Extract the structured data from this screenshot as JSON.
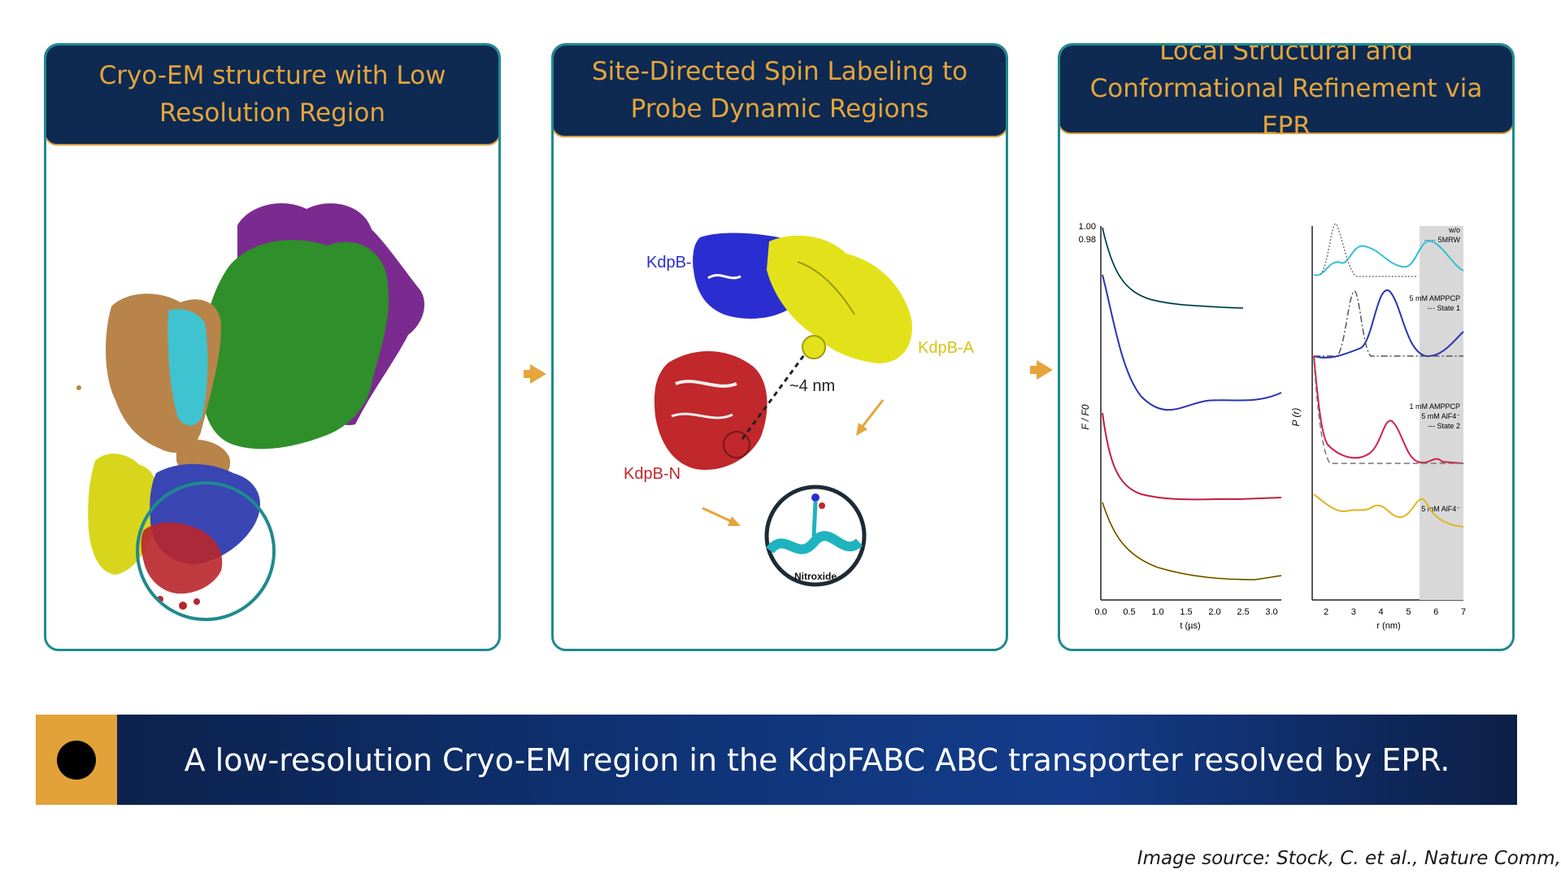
{
  "panels": [
    {
      "title": "Cryo-EM structure with Low Resolution Region"
    },
    {
      "title": "Site-Directed Spin Labeling to Probe Dynamic Regions",
      "labels": {
        "kdpb_p": "KdpB-P",
        "kdpb_a": "KdpB-A",
        "kdpb_n": "KdpB-N",
        "distance": "~4 nm",
        "nitroxide": "Nitroxide"
      }
    },
    {
      "title": "Local Structural and Conformational Refinement via EPR",
      "left_plot": {
        "ytick_top": "1.00",
        "ytick_second": "0.98",
        "ylabel": "F / F0",
        "xlabel": "t (µs)",
        "xticks": [
          "0.0",
          "0.5",
          "1.0",
          "1.5",
          "2.0",
          "2.5",
          "3.0"
        ]
      },
      "right_plot": {
        "ylabel": "P (r)",
        "xlabel": "r (nm)",
        "xticks": [
          "2",
          "3",
          "4",
          "5",
          "6",
          "7"
        ],
        "legends": [
          [
            "w/o",
            "····· 5MRW"
          ],
          [
            "5 mM AMPPCP",
            "-·- State 1"
          ],
          [
            "1 mM AMPPCP",
            "5 mM AlF4⁻",
            "--- State 2"
          ],
          [
            "5 mM AlF4⁻"
          ]
        ]
      }
    }
  ],
  "banner": {
    "text": "A low-resolution Cryo-EM region in the KdpFABC ABC transporter resolved by EPR."
  },
  "source": "Image source: Stock, C. et al., Nature Comm,",
  "colors": {
    "navy": "#0e2a52",
    "gold": "#e5a53b",
    "teal": "#1f8a8e"
  }
}
